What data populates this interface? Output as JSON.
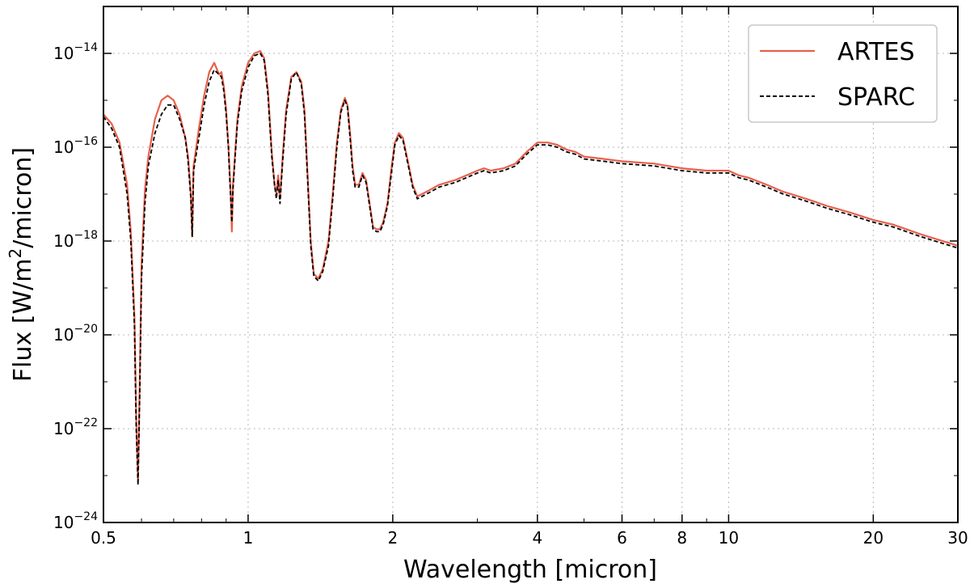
{
  "chart_data": {
    "type": "line",
    "xlabel": "Wavelength [micron]",
    "ylabel": "Flux [W/m^2/micron]",
    "ylabel_parts": {
      "pre": "Flux [W/m",
      "sup": "2",
      "post": "/micron]"
    },
    "x_scale": "log",
    "y_scale": "log",
    "xlim": [
      0.5,
      30
    ],
    "ylim": [
      1e-24,
      1e-13
    ],
    "grid": true,
    "legend_position": "top-right",
    "x_ticks": [
      0.5,
      1,
      2,
      4,
      6,
      8,
      10,
      20,
      30
    ],
    "x_tick_labels": [
      "0.5",
      "1",
      "2",
      "4",
      "6",
      "8",
      "10",
      "20",
      "30"
    ],
    "y_ticks": [
      1e-24,
      1e-22,
      1e-20,
      1e-18,
      1e-16,
      1e-14
    ],
    "y_tick_labels": [
      {
        "base": "10",
        "exp": "−24"
      },
      {
        "base": "10",
        "exp": "−22"
      },
      {
        "base": "10",
        "exp": "−20"
      },
      {
        "base": "10",
        "exp": "−18"
      },
      {
        "base": "10",
        "exp": "−16"
      },
      {
        "base": "10",
        "exp": "−14"
      }
    ],
    "series": [
      {
        "name": "ARTES",
        "color": "#e8604c",
        "style": "solid",
        "points": [
          [
            0.5,
            -15.3
          ],
          [
            0.52,
            -15.5
          ],
          [
            0.54,
            -15.9
          ],
          [
            0.56,
            -16.8
          ],
          [
            0.57,
            -17.8
          ],
          [
            0.58,
            -19.6
          ],
          [
            0.585,
            -21.8
          ],
          [
            0.59,
            -23.1
          ],
          [
            0.595,
            -21.0
          ],
          [
            0.6,
            -18.5
          ],
          [
            0.61,
            -16.9
          ],
          [
            0.62,
            -16.2
          ],
          [
            0.64,
            -15.4
          ],
          [
            0.66,
            -15.0
          ],
          [
            0.68,
            -14.9
          ],
          [
            0.7,
            -15.0
          ],
          [
            0.72,
            -15.3
          ],
          [
            0.74,
            -15.8
          ],
          [
            0.75,
            -16.2
          ],
          [
            0.76,
            -17.0
          ],
          [
            0.765,
            -17.9
          ],
          [
            0.77,
            -16.4
          ],
          [
            0.79,
            -15.6
          ],
          [
            0.81,
            -14.9
          ],
          [
            0.83,
            -14.4
          ],
          [
            0.85,
            -14.2
          ],
          [
            0.87,
            -14.45
          ],
          [
            0.88,
            -14.4
          ],
          [
            0.89,
            -14.7
          ],
          [
            0.9,
            -15.2
          ],
          [
            0.91,
            -16.0
          ],
          [
            0.915,
            -16.5
          ],
          [
            0.92,
            -17.0
          ],
          [
            0.925,
            -17.8
          ],
          [
            0.93,
            -16.8
          ],
          [
            0.95,
            -15.4
          ],
          [
            0.97,
            -14.7
          ],
          [
            1.0,
            -14.2
          ],
          [
            1.03,
            -14.0
          ],
          [
            1.06,
            -13.95
          ],
          [
            1.08,
            -14.1
          ],
          [
            1.1,
            -14.8
          ],
          [
            1.12,
            -16.1
          ],
          [
            1.135,
            -16.8
          ],
          [
            1.145,
            -17.0
          ],
          [
            1.155,
            -16.6
          ],
          [
            1.165,
            -17.1
          ],
          [
            1.18,
            -16.2
          ],
          [
            1.2,
            -15.2
          ],
          [
            1.23,
            -14.5
          ],
          [
            1.26,
            -14.4
          ],
          [
            1.29,
            -14.6
          ],
          [
            1.31,
            -15.2
          ],
          [
            1.33,
            -16.6
          ],
          [
            1.35,
            -18.0
          ],
          [
            1.37,
            -18.7
          ],
          [
            1.4,
            -18.8
          ],
          [
            1.43,
            -18.6
          ],
          [
            1.47,
            -18.0
          ],
          [
            1.5,
            -17.0
          ],
          [
            1.53,
            -15.9
          ],
          [
            1.56,
            -15.2
          ],
          [
            1.59,
            -14.95
          ],
          [
            1.61,
            -15.1
          ],
          [
            1.63,
            -15.7
          ],
          [
            1.65,
            -16.4
          ],
          [
            1.67,
            -16.8
          ],
          [
            1.7,
            -16.8
          ],
          [
            1.73,
            -16.55
          ],
          [
            1.76,
            -16.7
          ],
          [
            1.79,
            -17.2
          ],
          [
            1.82,
            -17.7
          ],
          [
            1.85,
            -17.75
          ],
          [
            1.88,
            -17.75
          ],
          [
            1.91,
            -17.6
          ],
          [
            1.95,
            -17.2
          ],
          [
            1.99,
            -16.4
          ],
          [
            2.02,
            -15.9
          ],
          [
            2.06,
            -15.7
          ],
          [
            2.1,
            -15.8
          ],
          [
            2.15,
            -16.3
          ],
          [
            2.2,
            -16.8
          ],
          [
            2.25,
            -17.05
          ],
          [
            2.3,
            -17.0
          ],
          [
            2.4,
            -16.9
          ],
          [
            2.5,
            -16.8
          ],
          [
            2.7,
            -16.7
          ],
          [
            3.0,
            -16.5
          ],
          [
            3.1,
            -16.45
          ],
          [
            3.2,
            -16.5
          ],
          [
            3.4,
            -16.45
          ],
          [
            3.6,
            -16.35
          ],
          [
            3.8,
            -16.1
          ],
          [
            4.0,
            -15.9
          ],
          [
            4.2,
            -15.9
          ],
          [
            4.4,
            -15.95
          ],
          [
            4.6,
            -16.05
          ],
          [
            4.8,
            -16.1
          ],
          [
            5.0,
            -16.2
          ],
          [
            5.5,
            -16.25
          ],
          [
            6.0,
            -16.3
          ],
          [
            7.0,
            -16.35
          ],
          [
            8.0,
            -16.45
          ],
          [
            9.0,
            -16.5
          ],
          [
            10.0,
            -16.5
          ],
          [
            10.5,
            -16.6
          ],
          [
            11.0,
            -16.65
          ],
          [
            12.0,
            -16.8
          ],
          [
            13.0,
            -16.95
          ],
          [
            14.0,
            -17.05
          ],
          [
            15.0,
            -17.15
          ],
          [
            16.0,
            -17.25
          ],
          [
            18.0,
            -17.4
          ],
          [
            20.0,
            -17.55
          ],
          [
            22.0,
            -17.65
          ],
          [
            25.0,
            -17.85
          ],
          [
            30.0,
            -18.1
          ]
        ]
      },
      {
        "name": "SPARC",
        "color": "#000000",
        "style": "dashed",
        "points": [
          [
            0.5,
            -15.35
          ],
          [
            0.52,
            -15.6
          ],
          [
            0.54,
            -16.0
          ],
          [
            0.56,
            -17.0
          ],
          [
            0.57,
            -18.0
          ],
          [
            0.58,
            -19.8
          ],
          [
            0.585,
            -22.0
          ],
          [
            0.59,
            -23.2
          ],
          [
            0.595,
            -21.2
          ],
          [
            0.6,
            -18.8
          ],
          [
            0.61,
            -17.2
          ],
          [
            0.62,
            -16.4
          ],
          [
            0.64,
            -15.7
          ],
          [
            0.66,
            -15.3
          ],
          [
            0.68,
            -15.1
          ],
          [
            0.7,
            -15.1
          ],
          [
            0.72,
            -15.4
          ],
          [
            0.74,
            -15.8
          ],
          [
            0.75,
            -16.3
          ],
          [
            0.76,
            -17.1
          ],
          [
            0.765,
            -17.9
          ],
          [
            0.77,
            -16.5
          ],
          [
            0.79,
            -15.8
          ],
          [
            0.81,
            -15.1
          ],
          [
            0.83,
            -14.6
          ],
          [
            0.85,
            -14.35
          ],
          [
            0.87,
            -14.45
          ],
          [
            0.88,
            -14.5
          ],
          [
            0.89,
            -14.8
          ],
          [
            0.9,
            -15.3
          ],
          [
            0.91,
            -16.0
          ],
          [
            0.915,
            -16.6
          ],
          [
            0.92,
            -17.1
          ],
          [
            0.925,
            -17.6
          ],
          [
            0.93,
            -16.9
          ],
          [
            0.95,
            -15.5
          ],
          [
            0.97,
            -14.8
          ],
          [
            1.0,
            -14.3
          ],
          [
            1.03,
            -14.05
          ],
          [
            1.06,
            -14.0
          ],
          [
            1.08,
            -14.15
          ],
          [
            1.1,
            -14.9
          ],
          [
            1.12,
            -16.2
          ],
          [
            1.135,
            -16.8
          ],
          [
            1.145,
            -17.1
          ],
          [
            1.155,
            -16.7
          ],
          [
            1.165,
            -17.2
          ],
          [
            1.18,
            -16.3
          ],
          [
            1.2,
            -15.3
          ],
          [
            1.23,
            -14.55
          ],
          [
            1.26,
            -14.4
          ],
          [
            1.29,
            -14.65
          ],
          [
            1.31,
            -15.3
          ],
          [
            1.33,
            -16.7
          ],
          [
            1.35,
            -18.1
          ],
          [
            1.37,
            -18.75
          ],
          [
            1.4,
            -18.85
          ],
          [
            1.43,
            -18.65
          ],
          [
            1.47,
            -18.1
          ],
          [
            1.5,
            -17.1
          ],
          [
            1.53,
            -16.0
          ],
          [
            1.56,
            -15.25
          ],
          [
            1.59,
            -15.0
          ],
          [
            1.61,
            -15.15
          ],
          [
            1.63,
            -15.8
          ],
          [
            1.65,
            -16.5
          ],
          [
            1.67,
            -16.85
          ],
          [
            1.7,
            -16.85
          ],
          [
            1.73,
            -16.6
          ],
          [
            1.76,
            -16.75
          ],
          [
            1.79,
            -17.25
          ],
          [
            1.82,
            -17.75
          ],
          [
            1.85,
            -17.8
          ],
          [
            1.88,
            -17.8
          ],
          [
            1.91,
            -17.65
          ],
          [
            1.95,
            -17.25
          ],
          [
            1.99,
            -16.5
          ],
          [
            2.02,
            -15.95
          ],
          [
            2.06,
            -15.75
          ],
          [
            2.1,
            -15.85
          ],
          [
            2.15,
            -16.35
          ],
          [
            2.2,
            -16.85
          ],
          [
            2.25,
            -17.1
          ],
          [
            2.3,
            -17.05
          ],
          [
            2.4,
            -16.95
          ],
          [
            2.5,
            -16.85
          ],
          [
            2.7,
            -16.75
          ],
          [
            3.0,
            -16.55
          ],
          [
            3.1,
            -16.5
          ],
          [
            3.2,
            -16.55
          ],
          [
            3.4,
            -16.5
          ],
          [
            3.6,
            -16.4
          ],
          [
            3.8,
            -16.15
          ],
          [
            4.0,
            -15.95
          ],
          [
            4.2,
            -15.95
          ],
          [
            4.4,
            -16.0
          ],
          [
            4.6,
            -16.1
          ],
          [
            4.8,
            -16.15
          ],
          [
            5.0,
            -16.25
          ],
          [
            5.5,
            -16.3
          ],
          [
            6.0,
            -16.35
          ],
          [
            7.0,
            -16.4
          ],
          [
            8.0,
            -16.5
          ],
          [
            9.0,
            -16.55
          ],
          [
            10.0,
            -16.55
          ],
          [
            10.5,
            -16.65
          ],
          [
            11.0,
            -16.7
          ],
          [
            12.0,
            -16.85
          ],
          [
            13.0,
            -17.0
          ],
          [
            14.0,
            -17.1
          ],
          [
            15.0,
            -17.2
          ],
          [
            16.0,
            -17.3
          ],
          [
            18.0,
            -17.45
          ],
          [
            20.0,
            -17.6
          ],
          [
            22.0,
            -17.7
          ],
          [
            25.0,
            -17.9
          ],
          [
            30.0,
            -18.15
          ]
        ]
      }
    ]
  }
}
